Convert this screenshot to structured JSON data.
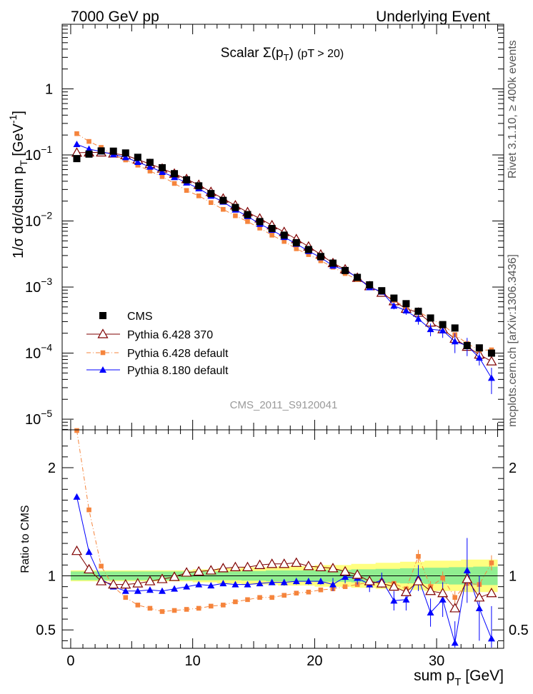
{
  "header": {
    "left": "7000 GeV pp",
    "right": "Underlying Event",
    "side_top": "Rivet 3.1.10, ≥ 400k events",
    "side_bottom": "mcplots.cern.ch [arXiv:1306.3436]"
  },
  "chart_data": [
    {
      "type": "scatter",
      "title": "Scalar Σ(p_T) (pT > 20)",
      "ylabel": "1/σ dσ/dsum p_T [GeV^-1]",
      "xlabel": "sum p_T [GeV]",
      "yscale": "log",
      "xlim": [
        -0.7,
        35.5
      ],
      "ylim": [
        6.9e-06,
        9.5
      ],
      "yticks": [
        {
          "v": 1e-05,
          "base": "10",
          "exp": "−5"
        },
        {
          "v": 0.0001,
          "base": "10",
          "exp": "−4"
        },
        {
          "v": 0.001,
          "base": "10",
          "exp": "−3"
        },
        {
          "v": 0.01,
          "base": "10",
          "exp": "−2"
        },
        {
          "v": 0.1,
          "base": "10",
          "exp": "−1"
        },
        {
          "v": 1,
          "base": "1",
          "exp": ""
        }
      ],
      "watermark": "CMS_2011_S9120041",
      "x": [
        0.5,
        1.5,
        2.5,
        3.5,
        4.5,
        5.5,
        6.5,
        7.5,
        8.5,
        9.5,
        10.5,
        11.5,
        12.5,
        13.5,
        14.5,
        15.5,
        16.5,
        17.5,
        18.5,
        19.5,
        20.5,
        21.5,
        22.5,
        23.5,
        24.5,
        25.5,
        26.5,
        27.5,
        28.5,
        29.5,
        30.5,
        31.5,
        32.5,
        33.5,
        34.5
      ],
      "series": [
        {
          "name": "CMS",
          "color": "#000000",
          "marker": "square",
          "values": [
            0.088,
            0.103,
            0.115,
            0.114,
            0.107,
            0.092,
            0.077,
            0.064,
            0.052,
            0.042,
            0.034,
            0.026,
            0.0205,
            0.016,
            0.0125,
            0.0098,
            0.0077,
            0.0061,
            0.0047,
            0.0037,
            0.0029,
            0.0023,
            0.00178,
            0.0014,
            0.00108,
            0.00088,
            0.00068,
            0.00056,
            0.00043,
            0.00034,
            0.00027,
            0.00024,
            0.00013,
            0.00012,
            0.0001
          ]
        },
        {
          "name": "Pythia 6.428 370",
          "color": "#7f0000",
          "marker": "triangle-open",
          "line": "solid",
          "values": [
            0.108,
            0.109,
            0.109,
            0.105,
            0.099,
            0.085,
            0.073,
            0.062,
            0.052,
            0.043,
            0.0352,
            0.0275,
            0.0218,
            0.0172,
            0.0136,
            0.0109,
            0.0086,
            0.0068,
            0.0053,
            0.0041,
            0.0031,
            0.0023,
            0.00185,
            0.00138,
            0.00103,
            0.00082,
            0.00061,
            0.00047,
            0.00041,
            0.00029,
            0.00023,
            0.000165,
            0.000125,
            9.5e-05,
            7.5e-05
          ]
        },
        {
          "name": "Pythia 6.428 default",
          "color": "#f5843c",
          "marker": "square-small",
          "line": "dashdot",
          "values": [
            0.21,
            0.16,
            0.13,
            0.1,
            0.084,
            0.07,
            0.057,
            0.047,
            0.037,
            0.029,
            0.024,
            0.019,
            0.015,
            0.012,
            0.0098,
            0.0078,
            0.0061,
            0.0049,
            0.0038,
            0.0031,
            0.0025,
            0.002,
            0.0016,
            0.0013,
            0.00103,
            0.00083,
            0.00063,
            0.00049,
            0.00043,
            0.00033,
            0.00027,
            0.00019,
            0.00014,
            0.00011,
            0.000112
          ]
        },
        {
          "name": "Pythia 8.180 default",
          "color": "#0000ff",
          "marker": "triangle",
          "line": "solid",
          "values": [
            0.145,
            0.123,
            0.112,
            0.102,
            0.092,
            0.078,
            0.066,
            0.055,
            0.046,
            0.038,
            0.031,
            0.024,
            0.0195,
            0.0148,
            0.0118,
            0.009,
            0.0073,
            0.0057,
            0.0045,
            0.0035,
            0.0028,
            0.0021,
            0.0018,
            0.0014,
            0.00099,
            0.00085,
            0.00052,
            0.00044,
            0.00033,
            0.00023,
            0.00022,
            0.00015,
            0.00013,
            8.5e-05,
            4.2e-05
          ],
          "err": [
            0,
            0,
            0,
            0,
            0,
            0,
            0,
            0,
            0,
            0,
            0,
            0,
            0,
            0,
            0,
            0,
            0,
            0,
            0,
            0,
            0,
            0,
            0,
            0,
            0,
            0,
            6e-05,
            6e-05,
            6e-05,
            5e-05,
            5e-05,
            5e-05,
            4e-05,
            2e-05,
            1.8e-05
          ]
        }
      ]
    },
    {
      "type": "scatter",
      "ylabel": "Ratio to CMS",
      "xlabel": "sum p_T [GeV]",
      "xlim": [
        -0.7,
        35.5
      ],
      "ylim": [
        0.33,
        2.35
      ],
      "xticks": [
        0,
        10,
        20,
        30
      ],
      "yticks": [
        0.5,
        1,
        2
      ],
      "bands": {
        "green_half_width": [
          0.04,
          0.04,
          0.04,
          0.04,
          0.04,
          0.04,
          0.04,
          0.04,
          0.04,
          0.04,
          0.04,
          0.04,
          0.04,
          0.04,
          0.045,
          0.045,
          0.05,
          0.05,
          0.05,
          0.05,
          0.055,
          0.055,
          0.055,
          0.06,
          0.06,
          0.065,
          0.065,
          0.07,
          0.07,
          0.075,
          0.075,
          0.08,
          0.08,
          0.085,
          0.085
        ],
        "yellow_half_width": [
          0.05,
          0.05,
          0.05,
          0.05,
          0.05,
          0.05,
          0.05,
          0.05,
          0.05,
          0.05,
          0.06,
          0.06,
          0.07,
          0.07,
          0.08,
          0.08,
          0.08,
          0.09,
          0.09,
          0.09,
          0.1,
          0.1,
          0.1,
          0.11,
          0.11,
          0.12,
          0.12,
          0.13,
          0.13,
          0.14,
          0.14,
          0.14,
          0.15,
          0.15,
          0.15
        ]
      },
      "series": [
        {
          "name": "Pythia 6.428 370",
          "color": "#7f0000",
          "marker": "triangle-open",
          "line": "solid",
          "values": [
            1.23,
            1.06,
            0.95,
            0.92,
            0.92,
            0.93,
            0.95,
            0.97,
            0.99,
            1.03,
            1.04,
            1.05,
            1.07,
            1.08,
            1.08,
            1.1,
            1.11,
            1.11,
            1.12,
            1.09,
            1.08,
            1.07,
            1.04,
            1.01,
            0.95,
            0.93,
            0.9,
            0.85,
            0.95,
            0.86,
            0.84,
            0.7,
            0.97,
            0.8,
            0.84
          ]
        },
        {
          "name": "Pythia 6.428 default",
          "color": "#f5843c",
          "marker": "square-small",
          "line": "dashdot",
          "values": [
            2.35,
            1.61,
            1.09,
            0.9,
            0.8,
            0.73,
            0.7,
            0.67,
            0.68,
            0.69,
            0.7,
            0.72,
            0.73,
            0.76,
            0.78,
            0.8,
            0.8,
            0.82,
            0.84,
            0.85,
            0.87,
            0.88,
            0.9,
            0.92,
            0.94,
            0.95,
            0.93,
            0.88,
            1.18,
            0.9,
            0.98,
            0.8,
            0.93,
            0.92,
            1.12
          ],
          "err": [
            0,
            0,
            0,
            0,
            0,
            0,
            0,
            0,
            0,
            0,
            0,
            0,
            0,
            0,
            0,
            0,
            0,
            0,
            0,
            0,
            0,
            0,
            0,
            0,
            0,
            0,
            0,
            0,
            0.06,
            0.05,
            0.06,
            0.06,
            0.06,
            0.06,
            0.07
          ]
        },
        {
          "name": "Pythia 8.180 default",
          "color": "#0000ff",
          "marker": "triangle",
          "line": "solid",
          "values": [
            1.73,
            1.22,
            0.97,
            0.9,
            0.86,
            0.86,
            0.87,
            0.86,
            0.88,
            0.9,
            0.92,
            0.91,
            0.93,
            0.92,
            0.92,
            0.93,
            0.94,
            0.94,
            0.95,
            0.95,
            0.95,
            0.92,
            0.99,
            0.98,
            0.92,
            0.96,
            0.77,
            0.78,
            0.98,
            0.66,
            0.78,
            0.38,
            1.05,
            0.7,
            0.42
          ],
          "err": [
            0,
            0,
            0,
            0,
            0,
            0,
            0,
            0,
            0,
            0,
            0,
            0.02,
            0.02,
            0.02,
            0.02,
            0.02,
            0.02,
            0.03,
            0.03,
            0.03,
            0.03,
            0.06,
            0.06,
            0.06,
            0.07,
            0.07,
            0.09,
            0.1,
            0.12,
            0.13,
            0.16,
            0.2,
            0.3,
            0.3,
            0.3
          ]
        },
        {
          "name": "CMS",
          "color": "#000000",
          "marker": "none",
          "line": "flat",
          "values": [
            1
          ]
        }
      ]
    }
  ]
}
